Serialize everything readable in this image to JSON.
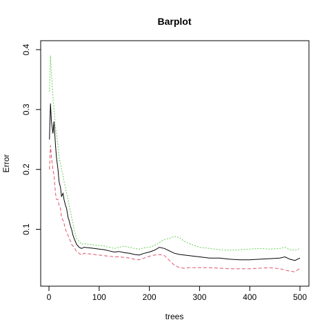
{
  "chart_data": {
    "type": "line",
    "title": "Barplot",
    "xlabel": "trees",
    "ylabel": "Error",
    "xlim": [
      0,
      500
    ],
    "ylim": [
      0.02,
      0.4
    ],
    "x_ticks": [
      0,
      100,
      200,
      300,
      400,
      500
    ],
    "y_ticks": [
      0.1,
      0.2,
      0.3,
      0.4
    ],
    "grid": false,
    "legend": "none",
    "series": [
      {
        "color": "#000000",
        "dash": "",
        "x": [
          1,
          3,
          5,
          8,
          10,
          13,
          15,
          18,
          20,
          23,
          25,
          28,
          30,
          33,
          35,
          38,
          40,
          43,
          45,
          48,
          50,
          55,
          60,
          65,
          70,
          80,
          90,
          100,
          110,
          120,
          130,
          140,
          150,
          160,
          170,
          180,
          190,
          200,
          210,
          220,
          230,
          240,
          250,
          260,
          270,
          280,
          290,
          300,
          320,
          340,
          360,
          380,
          400,
          420,
          440,
          460,
          470,
          480,
          490,
          500
        ],
        "y": [
          0.25,
          0.31,
          0.28,
          0.26,
          0.28,
          0.24,
          0.22,
          0.2,
          0.18,
          0.17,
          0.155,
          0.16,
          0.15,
          0.14,
          0.135,
          0.12,
          0.115,
          0.105,
          0.1,
          0.09,
          0.085,
          0.075,
          0.07,
          0.068,
          0.07,
          0.069,
          0.068,
          0.067,
          0.066,
          0.064,
          0.062,
          0.063,
          0.061,
          0.06,
          0.058,
          0.057,
          0.06,
          0.062,
          0.065,
          0.07,
          0.068,
          0.064,
          0.06,
          0.058,
          0.057,
          0.056,
          0.055,
          0.054,
          0.052,
          0.052,
          0.05,
          0.049,
          0.049,
          0.05,
          0.051,
          0.052,
          0.054,
          0.05,
          0.048,
          0.052
        ]
      },
      {
        "color": "#DF536B",
        "dash": "5,3",
        "x": [
          1,
          3,
          5,
          8,
          10,
          13,
          15,
          18,
          20,
          23,
          25,
          28,
          30,
          33,
          35,
          38,
          40,
          43,
          45,
          48,
          50,
          55,
          60,
          65,
          70,
          80,
          90,
          100,
          110,
          120,
          130,
          140,
          150,
          160,
          170,
          180,
          190,
          200,
          210,
          220,
          230,
          240,
          250,
          260,
          270,
          280,
          290,
          300,
          320,
          340,
          360,
          380,
          400,
          420,
          440,
          460,
          470,
          480,
          490,
          500
        ],
        "y": [
          0.2,
          0.24,
          0.22,
          0.2,
          0.19,
          0.16,
          0.15,
          0.15,
          0.14,
          0.135,
          0.12,
          0.115,
          0.11,
          0.1,
          0.095,
          0.09,
          0.085,
          0.08,
          0.075,
          0.072,
          0.07,
          0.063,
          0.06,
          0.057,
          0.06,
          0.059,
          0.058,
          0.057,
          0.056,
          0.055,
          0.054,
          0.054,
          0.053,
          0.052,
          0.05,
          0.049,
          0.052,
          0.055,
          0.057,
          0.058,
          0.056,
          0.048,
          0.04,
          0.036,
          0.035,
          0.036,
          0.036,
          0.036,
          0.036,
          0.035,
          0.034,
          0.034,
          0.034,
          0.035,
          0.036,
          0.034,
          0.032,
          0.03,
          0.029,
          0.035
        ]
      },
      {
        "color": "#61D04F",
        "dash": "2,2",
        "x": [
          1,
          3,
          5,
          8,
          10,
          13,
          15,
          18,
          20,
          23,
          25,
          28,
          30,
          33,
          35,
          38,
          40,
          43,
          45,
          48,
          50,
          55,
          60,
          65,
          70,
          80,
          90,
          100,
          110,
          120,
          130,
          140,
          150,
          160,
          170,
          180,
          190,
          200,
          210,
          220,
          230,
          240,
          250,
          260,
          270,
          280,
          290,
          300,
          320,
          340,
          360,
          380,
          400,
          420,
          440,
          460,
          470,
          480,
          490,
          500
        ],
        "y": [
          0.33,
          0.39,
          0.36,
          0.32,
          0.3,
          0.27,
          0.26,
          0.24,
          0.22,
          0.21,
          0.2,
          0.19,
          0.18,
          0.17,
          0.16,
          0.15,
          0.14,
          0.13,
          0.12,
          0.11,
          0.1,
          0.085,
          0.08,
          0.075,
          0.076,
          0.075,
          0.074,
          0.073,
          0.072,
          0.07,
          0.068,
          0.07,
          0.072,
          0.07,
          0.068,
          0.067,
          0.069,
          0.07,
          0.073,
          0.078,
          0.083,
          0.085,
          0.088,
          0.086,
          0.08,
          0.076,
          0.073,
          0.07,
          0.068,
          0.066,
          0.065,
          0.066,
          0.067,
          0.068,
          0.067,
          0.068,
          0.07,
          0.066,
          0.065,
          0.068
        ]
      }
    ]
  }
}
